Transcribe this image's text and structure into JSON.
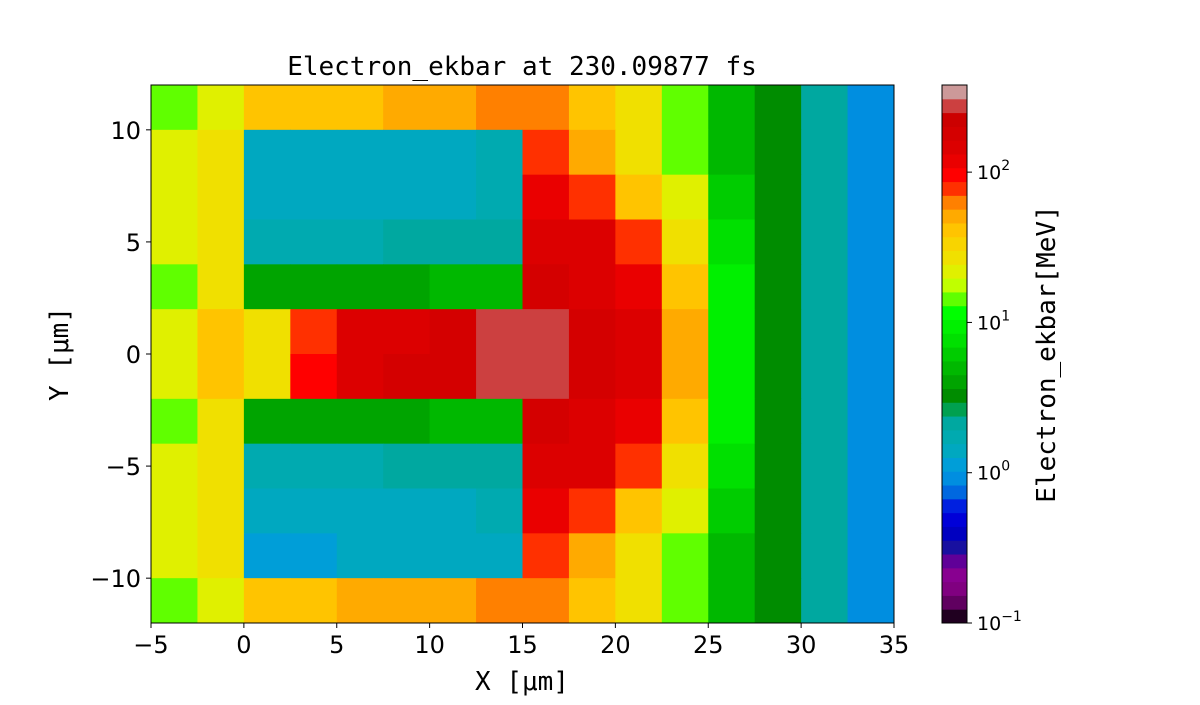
{
  "chart_data": {
    "type": "heatmap",
    "title": "Electron_ekbar at 230.09877 fs",
    "xlabel": "X [μm]",
    "ylabel": "Y [μm]",
    "colorbar_label": "Electron_ekbar[MeV]",
    "xlim": [
      -5,
      35
    ],
    "ylim": [
      -12,
      12
    ],
    "xticks": [
      -5,
      0,
      5,
      10,
      15,
      20,
      25,
      30,
      35
    ],
    "yticks": [
      -10,
      -5,
      0,
      5,
      10
    ],
    "colorbar": {
      "scale": "log",
      "range": [
        0.1,
        380
      ],
      "ticks": [
        {
          "value": 0.1,
          "exp": "−1"
        },
        {
          "value": 1,
          "exp": "0"
        },
        {
          "value": 10,
          "exp": "1"
        },
        {
          "value": 100,
          "exp": "2"
        }
      ],
      "tick_base": "10",
      "colors": [
        "#200020",
        "#600060",
        "#800080",
        "#880090",
        "#600098",
        "#1810a0",
        "#0000c0",
        "#0000d8",
        "#0020e0",
        "#0068e0",
        "#008ee0",
        "#009ed8",
        "#00a8c0",
        "#00aab0",
        "#00a8a0",
        "#00a050",
        "#008c00",
        "#00a400",
        "#00b800",
        "#00cc00",
        "#00e000",
        "#00f000",
        "#00ff00",
        "#60ff00",
        "#c0ff00",
        "#e0f000",
        "#f0e000",
        "#f8d400",
        "#ffc400",
        "#ffaa00",
        "#ff8000",
        "#ff3000",
        "#ff0000",
        "#ea0000",
        "#dc0000",
        "#d40000",
        "#cc0000",
        "#cc4040",
        "#cc9999"
      ]
    },
    "x_cell_edges": [
      -5,
      -2.5,
      0,
      2.5,
      5,
      7.5,
      10,
      12.5,
      15,
      17.5,
      20,
      22.5,
      25,
      27.5,
      30,
      32.5,
      35
    ],
    "y_cell_edges": [
      12,
      10,
      8,
      6,
      4,
      2,
      0,
      -2,
      -4,
      -6,
      -8,
      -10,
      -12
    ],
    "values_MeV": [
      [
        15,
        20,
        40,
        40,
        40,
        50,
        50,
        60,
        60,
        40,
        30,
        15,
        5,
        3,
        2,
        1
      ],
      [
        20,
        25,
        1.5,
        1.5,
        1.5,
        1.5,
        1.5,
        1.6,
        80,
        50,
        30,
        15,
        5,
        3,
        2,
        1
      ],
      [
        20,
        25,
        1.5,
        1.5,
        1.5,
        1.5,
        1.5,
        1.6,
        120,
        80,
        40,
        20,
        6,
        3,
        2,
        1
      ],
      [
        20,
        30,
        1.8,
        1.8,
        1.8,
        2,
        2,
        2,
        150,
        150,
        80,
        30,
        8,
        3,
        2,
        1
      ],
      [
        15,
        30,
        4,
        4,
        4,
        4,
        5,
        5,
        200,
        150,
        120,
        40,
        10,
        3,
        2,
        1
      ],
      [
        20,
        40,
        30,
        80,
        150,
        150,
        200,
        250,
        250,
        200,
        150,
        50,
        10,
        3,
        2,
        1
      ],
      [
        20,
        40,
        30,
        100,
        150,
        180,
        200,
        250,
        250,
        200,
        150,
        50,
        10,
        3,
        2,
        1
      ],
      [
        15,
        30,
        4,
        4,
        4,
        4,
        5,
        5,
        200,
        150,
        120,
        40,
        10,
        3,
        2,
        1
      ],
      [
        20,
        30,
        1.8,
        1.8,
        1.8,
        2,
        2,
        2,
        150,
        150,
        80,
        30,
        8,
        3,
        2,
        1
      ],
      [
        20,
        25,
        1.5,
        1.5,
        1.5,
        1.5,
        1.5,
        1.6,
        120,
        80,
        40,
        20,
        6,
        3,
        2,
        1
      ],
      [
        20,
        25,
        1.2,
        1.2,
        1.3,
        1.3,
        1.4,
        1.5,
        80,
        50,
        30,
        15,
        5,
        3,
        2,
        1
      ],
      [
        15,
        20,
        40,
        40,
        50,
        50,
        50,
        60,
        60,
        40,
        30,
        15,
        5,
        3,
        2,
        1
      ]
    ],
    "grid": false
  }
}
